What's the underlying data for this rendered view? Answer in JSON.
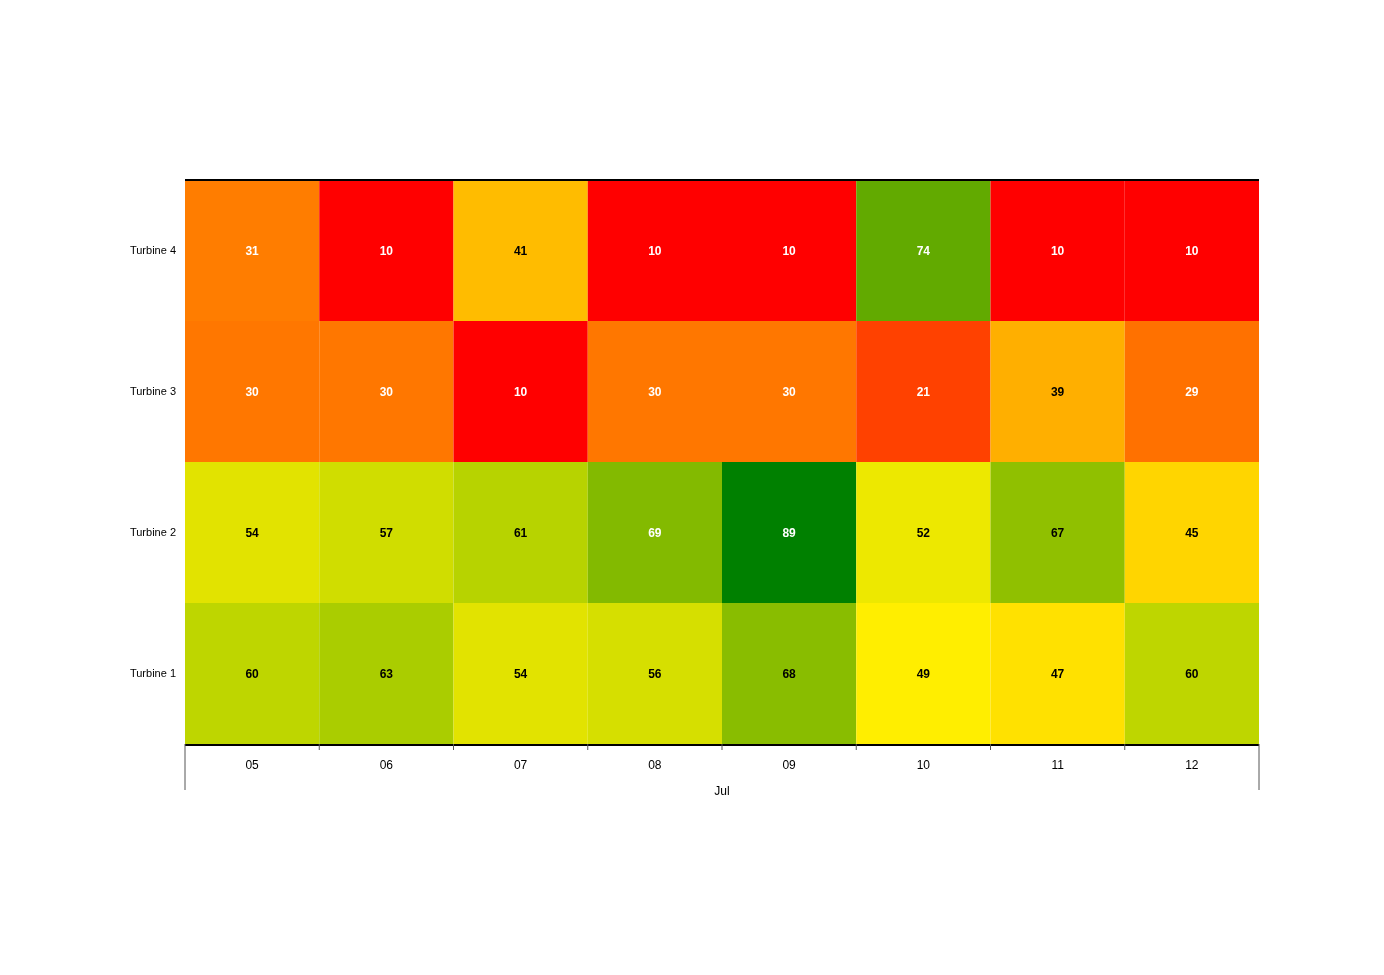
{
  "chart_data": {
    "type": "heatmap",
    "xlabel": "Jul",
    "categories": [
      "05",
      "06",
      "07",
      "08",
      "09",
      "10",
      "11",
      "12"
    ],
    "y_categories": [
      "Turbine 4",
      "Turbine 3",
      "Turbine 2",
      "Turbine 1"
    ],
    "cells": [
      [
        31,
        10,
        41,
        10,
        10,
        74,
        10,
        10
      ],
      [
        30,
        30,
        10,
        30,
        30,
        21,
        39,
        29
      ],
      [
        54,
        57,
        61,
        69,
        89,
        52,
        67,
        45
      ],
      [
        60,
        63,
        54,
        56,
        68,
        49,
        47,
        60
      ]
    ],
    "data_labels": true
  }
}
